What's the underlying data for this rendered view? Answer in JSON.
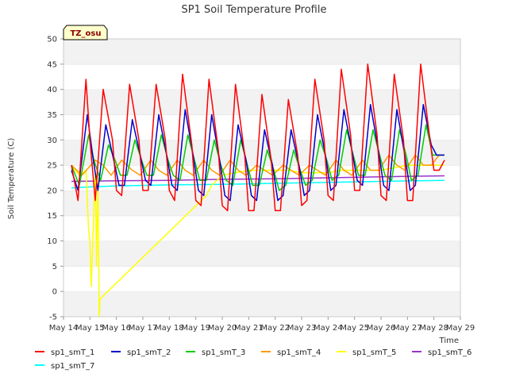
{
  "chart_data": {
    "type": "line",
    "title": "SP1 Soil Temperature Profile",
    "xlabel": "Time",
    "ylabel": "Soil Temperature (C)",
    "ylim": [
      -5,
      50
    ],
    "yticks": [
      "-5",
      "0",
      "5",
      "10",
      "15",
      "20",
      "25",
      "30",
      "35",
      "40",
      "45",
      "50"
    ],
    "xlim": [
      0,
      15
    ],
    "xticks": [
      "May 14",
      "May 15",
      "May 16",
      "May 17",
      "May 18",
      "May 19",
      "May 20",
      "May 21",
      "May 22",
      "May 23",
      "May 24",
      "May 25",
      "May 26",
      "May 27",
      "May 28",
      "May 29"
    ],
    "grid": "horizontal bands",
    "legend_position": "bottom",
    "annotation": "TZ_osu",
    "series": [
      {
        "name": "sp1_smT_1",
        "color": "#ff0000",
        "x": [
          0.3,
          0.55,
          0.85,
          1.0,
          1.2,
          1.5,
          1.85,
          2.0,
          2.2,
          2.5,
          2.85,
          3.0,
          3.2,
          3.5,
          3.85,
          4.0,
          4.2,
          4.5,
          4.85,
          5.0,
          5.2,
          5.5,
          5.85,
          6.0,
          6.2,
          6.5,
          6.85,
          7.0,
          7.2,
          7.5,
          7.85,
          8.0,
          8.2,
          8.5,
          8.85,
          9.0,
          9.2,
          9.5,
          9.85,
          10.0,
          10.2,
          10.5,
          10.85,
          11.0,
          11.2,
          11.5,
          11.85,
          12.0,
          12.2,
          12.5,
          12.85,
          13.0,
          13.2,
          13.5,
          13.85,
          14.0,
          14.2,
          14.4
        ],
        "y": [
          25,
          18,
          42,
          30,
          18,
          40,
          30,
          20,
          19,
          41,
          30,
          20,
          20,
          41,
          30,
          20,
          18,
          43,
          29,
          18,
          17,
          42,
          28,
          17,
          16,
          41,
          27,
          16,
          16,
          39,
          26,
          16,
          16,
          38,
          27,
          17,
          18,
          42,
          30,
          19,
          18,
          44,
          31,
          20,
          20,
          45,
          31,
          19,
          18,
          43,
          30,
          18,
          18,
          45,
          30,
          24,
          24,
          26
        ]
      },
      {
        "name": "sp1_smT_2",
        "color": "#0000cc",
        "x": [
          0.3,
          0.55,
          0.9,
          1.1,
          1.3,
          1.6,
          1.9,
          2.1,
          2.3,
          2.6,
          2.9,
          3.1,
          3.3,
          3.6,
          3.9,
          4.1,
          4.3,
          4.6,
          4.9,
          5.1,
          5.3,
          5.6,
          5.9,
          6.1,
          6.3,
          6.6,
          6.9,
          7.1,
          7.3,
          7.6,
          7.9,
          8.1,
          8.3,
          8.6,
          8.9,
          9.1,
          9.3,
          9.6,
          9.9,
          10.1,
          10.3,
          10.6,
          10.9,
          11.1,
          11.3,
          11.6,
          11.9,
          12.1,
          12.3,
          12.6,
          12.9,
          13.1,
          13.3,
          13.6,
          13.9,
          14.1,
          14.4
        ],
        "y": [
          24,
          20,
          35,
          27,
          20,
          33,
          26,
          21,
          21,
          34,
          27,
          22,
          21,
          35,
          27,
          21,
          20,
          36,
          27,
          20,
          19,
          35,
          26,
          19,
          18,
          33,
          26,
          19,
          18,
          32,
          25,
          18,
          19,
          32,
          25,
          19,
          20,
          35,
          27,
          20,
          21,
          36,
          28,
          22,
          21,
          37,
          28,
          21,
          20,
          36,
          27,
          20,
          21,
          37,
          29,
          27,
          27
        ]
      },
      {
        "name": "sp1_smT_3",
        "color": "#00cc00",
        "x": [
          0.3,
          0.6,
          0.95,
          1.15,
          1.4,
          1.7,
          1.95,
          2.15,
          2.4,
          2.7,
          2.95,
          3.15,
          3.4,
          3.7,
          3.95,
          4.15,
          4.4,
          4.7,
          4.95,
          5.15,
          5.4,
          5.7,
          5.95,
          6.15,
          6.4,
          6.7,
          6.95,
          7.15,
          7.4,
          7.7,
          7.95,
          8.15,
          8.4,
          8.7,
          8.95,
          9.15,
          9.4,
          9.7,
          9.95,
          10.15,
          10.4,
          10.7,
          10.95,
          11.15,
          11.4,
          11.7,
          11.95,
          12.15,
          12.4,
          12.7,
          12.95,
          13.15,
          13.4,
          13.7,
          13.95,
          14.15,
          14.4
        ],
        "y": [
          25,
          21,
          31,
          26,
          22,
          29,
          26,
          23,
          23,
          30,
          26,
          23,
          23,
          31,
          26,
          23,
          22,
          31,
          26,
          22,
          22,
          30,
          25,
          22,
          21,
          30,
          25,
          21,
          21,
          28,
          24,
          20,
          21,
          28,
          24,
          21,
          22,
          30,
          26,
          22,
          23,
          32,
          27,
          23,
          23,
          32,
          27,
          23,
          22,
          32,
          27,
          22,
          23,
          33,
          27,
          27,
          27
        ]
      },
      {
        "name": "sp1_smT_4",
        "color": "#ff9900",
        "x": [
          0.3,
          0.7,
          1.2,
          1.5,
          1.8,
          2.2,
          2.6,
          2.9,
          3.3,
          3.6,
          3.9,
          4.3,
          4.6,
          4.9,
          5.3,
          5.6,
          5.9,
          6.3,
          6.6,
          6.9,
          7.3,
          7.6,
          7.9,
          8.3,
          8.6,
          8.9,
          9.3,
          9.6,
          9.9,
          10.3,
          10.6,
          10.9,
          11.3,
          11.6,
          11.9,
          12.3,
          12.6,
          12.9,
          13.3,
          13.6,
          13.9,
          14.2,
          14.4
        ],
        "y": [
          25,
          23,
          26,
          25,
          23,
          26,
          24,
          23,
          26,
          24,
          23,
          26,
          24,
          23,
          26,
          24,
          23,
          26,
          24,
          23,
          25,
          24,
          23,
          25,
          24,
          23,
          25,
          24,
          23,
          26,
          24,
          23,
          26,
          24,
          24,
          27,
          25,
          24,
          27,
          25,
          25,
          27,
          27
        ]
      },
      {
        "name": "sp1_smT_5",
        "color": "#ffff00",
        "x": [
          0.3,
          0.6,
          0.85,
          0.95,
          1.0,
          1.05,
          1.2,
          1.25,
          1.3,
          1.35,
          1.38,
          5.4,
          5.6,
          6.0,
          6.5,
          7.0,
          7.5,
          8.0,
          8.5,
          9.0,
          9.5,
          10.0,
          10.5,
          11.0,
          11.5,
          12.0,
          12.5,
          13.0,
          13.5,
          14.0,
          14.4
        ],
        "y": [
          25,
          23,
          24,
          12,
          10,
          1,
          24,
          5,
          24,
          -5,
          -1.5,
          19,
          21,
          23,
          23.5,
          24,
          24,
          24,
          24,
          23.5,
          23.5,
          23.5,
          24,
          24,
          24,
          24,
          24.5,
          25,
          25,
          25,
          25
        ]
      },
      {
        "name": "sp1_smT_6",
        "color": "#9933cc",
        "x": [
          0.3,
          2.0,
          4.0,
          6.0,
          8.0,
          10.0,
          12.0,
          14.4
        ],
        "y": [
          21.8,
          21.9,
          22.0,
          22.2,
          22.3,
          22.5,
          22.7,
          22.9
        ]
      },
      {
        "name": "sp1_smT_7",
        "color": "#00ffff",
        "x": [
          0.3,
          1.0,
          2.0,
          4.0,
          6.0,
          8.0,
          10.0,
          12.0,
          14.4
        ],
        "y": [
          20.5,
          20.7,
          20.9,
          21.1,
          21.2,
          21.4,
          21.6,
          21.8,
          22.0
        ]
      }
    ]
  }
}
